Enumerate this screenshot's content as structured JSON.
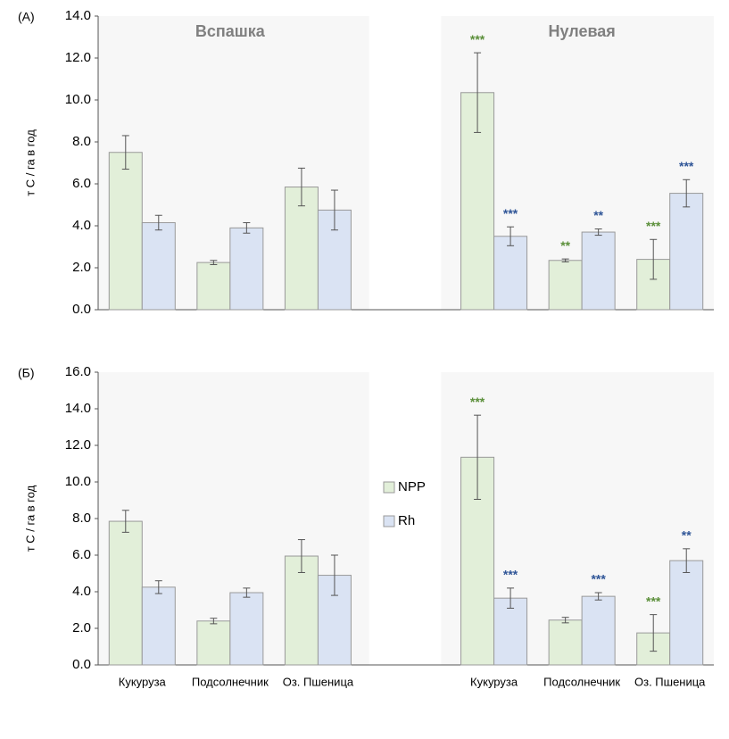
{
  "chart_data": [
    {
      "type": "bar",
      "panel_label": "(А)",
      "y_label": "т С / га в год",
      "annotations": [
        "Вспашка",
        "Нулевая"
      ],
      "categories": [
        null,
        null,
        null,
        null,
        null,
        null,
        null
      ],
      "ylim": [
        0,
        14
      ],
      "yticks": [
        {
          "value": 0,
          "label": "0.0"
        },
        {
          "value": 2,
          "label": "2.0"
        },
        {
          "value": 4,
          "label": "4.0"
        },
        {
          "value": 6,
          "label": "6.0"
        },
        {
          "value": 8,
          "label": "8.0"
        },
        {
          "value": 10,
          "label": "10.0"
        },
        {
          "value": 12,
          "label": "12.0"
        },
        {
          "value": 14,
          "label": "14.0"
        }
      ],
      "series": [
        {
          "color": "#e2efd9",
          "sig_color": "#5b8f3a",
          "values": [
            7.5,
            2.25,
            5.85,
            null,
            10.35,
            2.35,
            2.4
          ],
          "errors": [
            0.8,
            0.1,
            0.9,
            null,
            1.9,
            0.07,
            0.95
          ],
          "significance": [
            null,
            null,
            null,
            null,
            "***",
            "**",
            "***"
          ]
        },
        {
          "color": "#dae3f3",
          "sig_color": "#2f5597",
          "values": [
            4.15,
            3.9,
            4.75,
            null,
            3.5,
            3.7,
            5.55
          ],
          "errors": [
            0.35,
            0.25,
            0.95,
            null,
            0.45,
            0.15,
            0.65
          ],
          "significance": [
            null,
            null,
            null,
            null,
            "***",
            "**",
            "***"
          ]
        }
      ]
    },
    {
      "type": "bar",
      "panel_label": "(Б)",
      "y_label": "т С / га в год",
      "categories": [
        "Кукуруза",
        "Подсолнечник",
        "Оз. Пшеница",
        null,
        "Кукуруза",
        "Подсолнечник",
        "Оз. Пшеница"
      ],
      "ylim": [
        0,
        16
      ],
      "yticks": [
        {
          "value": 0,
          "label": "0.0"
        },
        {
          "value": 2,
          "label": "2.0"
        },
        {
          "value": 4,
          "label": "4.0"
        },
        {
          "value": 6,
          "label": "6.0"
        },
        {
          "value": 8,
          "label": "8.0"
        },
        {
          "value": 10,
          "label": "10.0"
        },
        {
          "value": 12,
          "label": "12.0"
        },
        {
          "value": 14,
          "label": "14.0"
        },
        {
          "value": 16,
          "label": "16.0"
        }
      ],
      "legend": "center",
      "series": [
        {
          "name": "NPP",
          "color": "#e2efd9",
          "sig_color": "#5b8f3a",
          "values": [
            7.85,
            2.4,
            5.95,
            null,
            11.35,
            2.45,
            1.75
          ],
          "errors": [
            0.6,
            0.15,
            0.9,
            null,
            2.3,
            0.15,
            1.0
          ],
          "significance": [
            null,
            null,
            null,
            null,
            "***",
            null,
            "***"
          ]
        },
        {
          "name": "Rh",
          "color": "#dae3f3",
          "sig_color": "#2f5597",
          "values": [
            4.25,
            3.95,
            4.9,
            null,
            3.65,
            3.75,
            5.7
          ],
          "errors": [
            0.35,
            0.25,
            1.1,
            null,
            0.55,
            0.2,
            0.65
          ],
          "significance": [
            null,
            null,
            null,
            null,
            "***",
            "***",
            "**"
          ]
        }
      ]
    }
  ]
}
